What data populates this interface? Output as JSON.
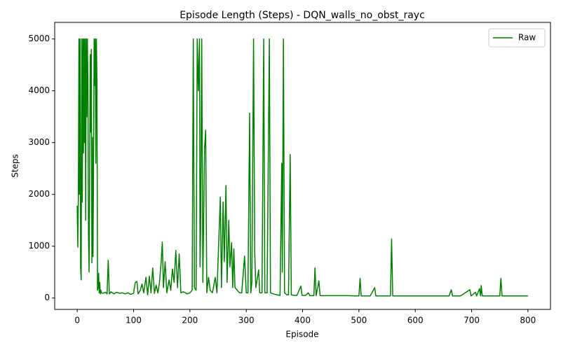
{
  "chart_data": {
    "type": "line",
    "title": "Episode Length (Steps) - DQN_walls_no_obst_rayc",
    "x_label": "Episode",
    "y_label": "Steps",
    "x": [
      0,
      1,
      2,
      3,
      4,
      5,
      6,
      7,
      8,
      9,
      10,
      11,
      12,
      13,
      14,
      15,
      16,
      17,
      18,
      19,
      20,
      21,
      22,
      23,
      24,
      25,
      26,
      27,
      28,
      29,
      30,
      31,
      32,
      33,
      34,
      35,
      36,
      37,
      38,
      39,
      40,
      41,
      42,
      43,
      46,
      50,
      53,
      55,
      57,
      60,
      65,
      70,
      75,
      80,
      85,
      90,
      95,
      100,
      103,
      106,
      108,
      112,
      115,
      118,
      122,
      125,
      128,
      131,
      134,
      137,
      140,
      143,
      146,
      149,
      151,
      153,
      156,
      159,
      163,
      166,
      169,
      172,
      175,
      178,
      181,
      184,
      188,
      192,
      195,
      200,
      204,
      206,
      208,
      211,
      213,
      215,
      217,
      218,
      219,
      221,
      223,
      226,
      228,
      230,
      233,
      236,
      240,
      245,
      248,
      254,
      256,
      259,
      261,
      264,
      266,
      269,
      271,
      274,
      276,
      278,
      280,
      284,
      288,
      292,
      297,
      300,
      303,
      306,
      308,
      310,
      313,
      315,
      317,
      322,
      324,
      328,
      331,
      333,
      337,
      341,
      343,
      348,
      355,
      360,
      363,
      364,
      366,
      368,
      372,
      375,
      378,
      380,
      385,
      390,
      397,
      399,
      405,
      410,
      413,
      420,
      422,
      424,
      429,
      431,
      440,
      460,
      480,
      500,
      502,
      504,
      520,
      528,
      530,
      545,
      556,
      558,
      560,
      580,
      600,
      620,
      640,
      660,
      664,
      666,
      680,
      697,
      699,
      707,
      709,
      714,
      716,
      717,
      719,
      735,
      750,
      752,
      754,
      770,
      800
    ],
    "series": [
      {
        "name": "Raw",
        "color": "#008000",
        "values": [
          1780,
          980,
          2000,
          5000,
          2000,
          5000,
          600,
          350,
          5000,
          1850,
          5000,
          2800,
          5000,
          3000,
          5000,
          1500,
          5000,
          3500,
          5000,
          4200,
          1200,
          500,
          2200,
          4700,
          3200,
          4800,
          680,
          3100,
          800,
          2600,
          5000,
          4100,
          5000,
          2600,
          5000,
          4200,
          150,
          200,
          480,
          100,
          300,
          80,
          150,
          100,
          90,
          110,
          80,
          730,
          80,
          120,
          80,
          110,
          90,
          100,
          80,
          100,
          70,
          90,
          300,
          320,
          80,
          150,
          270,
          100,
          400,
          60,
          420,
          100,
          580,
          90,
          250,
          100,
          300,
          700,
          1080,
          200,
          700,
          100,
          350,
          150,
          560,
          300,
          920,
          200,
          850,
          100,
          120,
          100,
          80,
          100,
          150,
          5000,
          200,
          150,
          5000,
          4000,
          5000,
          600,
          1300,
          5000,
          300,
          2900,
          3240,
          100,
          400,
          150,
          100,
          400,
          100,
          1950,
          200,
          1850,
          700,
          2170,
          300,
          1500,
          600,
          1070,
          200,
          950,
          200,
          150,
          100,
          100,
          810,
          100,
          100,
          3570,
          100,
          300,
          5000,
          900,
          200,
          540,
          100,
          100,
          5000,
          100,
          100,
          5000,
          100,
          80,
          60,
          50,
          2600,
          500,
          5000,
          100,
          60,
          60,
          2770,
          60,
          50,
          50,
          230,
          50,
          50,
          100,
          45,
          45,
          580,
          45,
          330,
          45,
          45,
          45,
          45,
          40,
          380,
          40,
          40,
          200,
          40,
          40,
          40,
          1140,
          40,
          40,
          40,
          40,
          40,
          40,
          160,
          40,
          40,
          160,
          40,
          110,
          40,
          180,
          40,
          240,
          40,
          40,
          40,
          380,
          40,
          40,
          40
        ]
      }
    ],
    "xlim": [
      -40,
      840
    ],
    "xticks": [
      0,
      100,
      200,
      300,
      400,
      500,
      600,
      700,
      800
    ],
    "ylim": [
      -220,
      5320
    ],
    "yticks": [
      0,
      1000,
      2000,
      3000,
      4000,
      5000
    ],
    "grid": false,
    "legend": "upper right"
  }
}
